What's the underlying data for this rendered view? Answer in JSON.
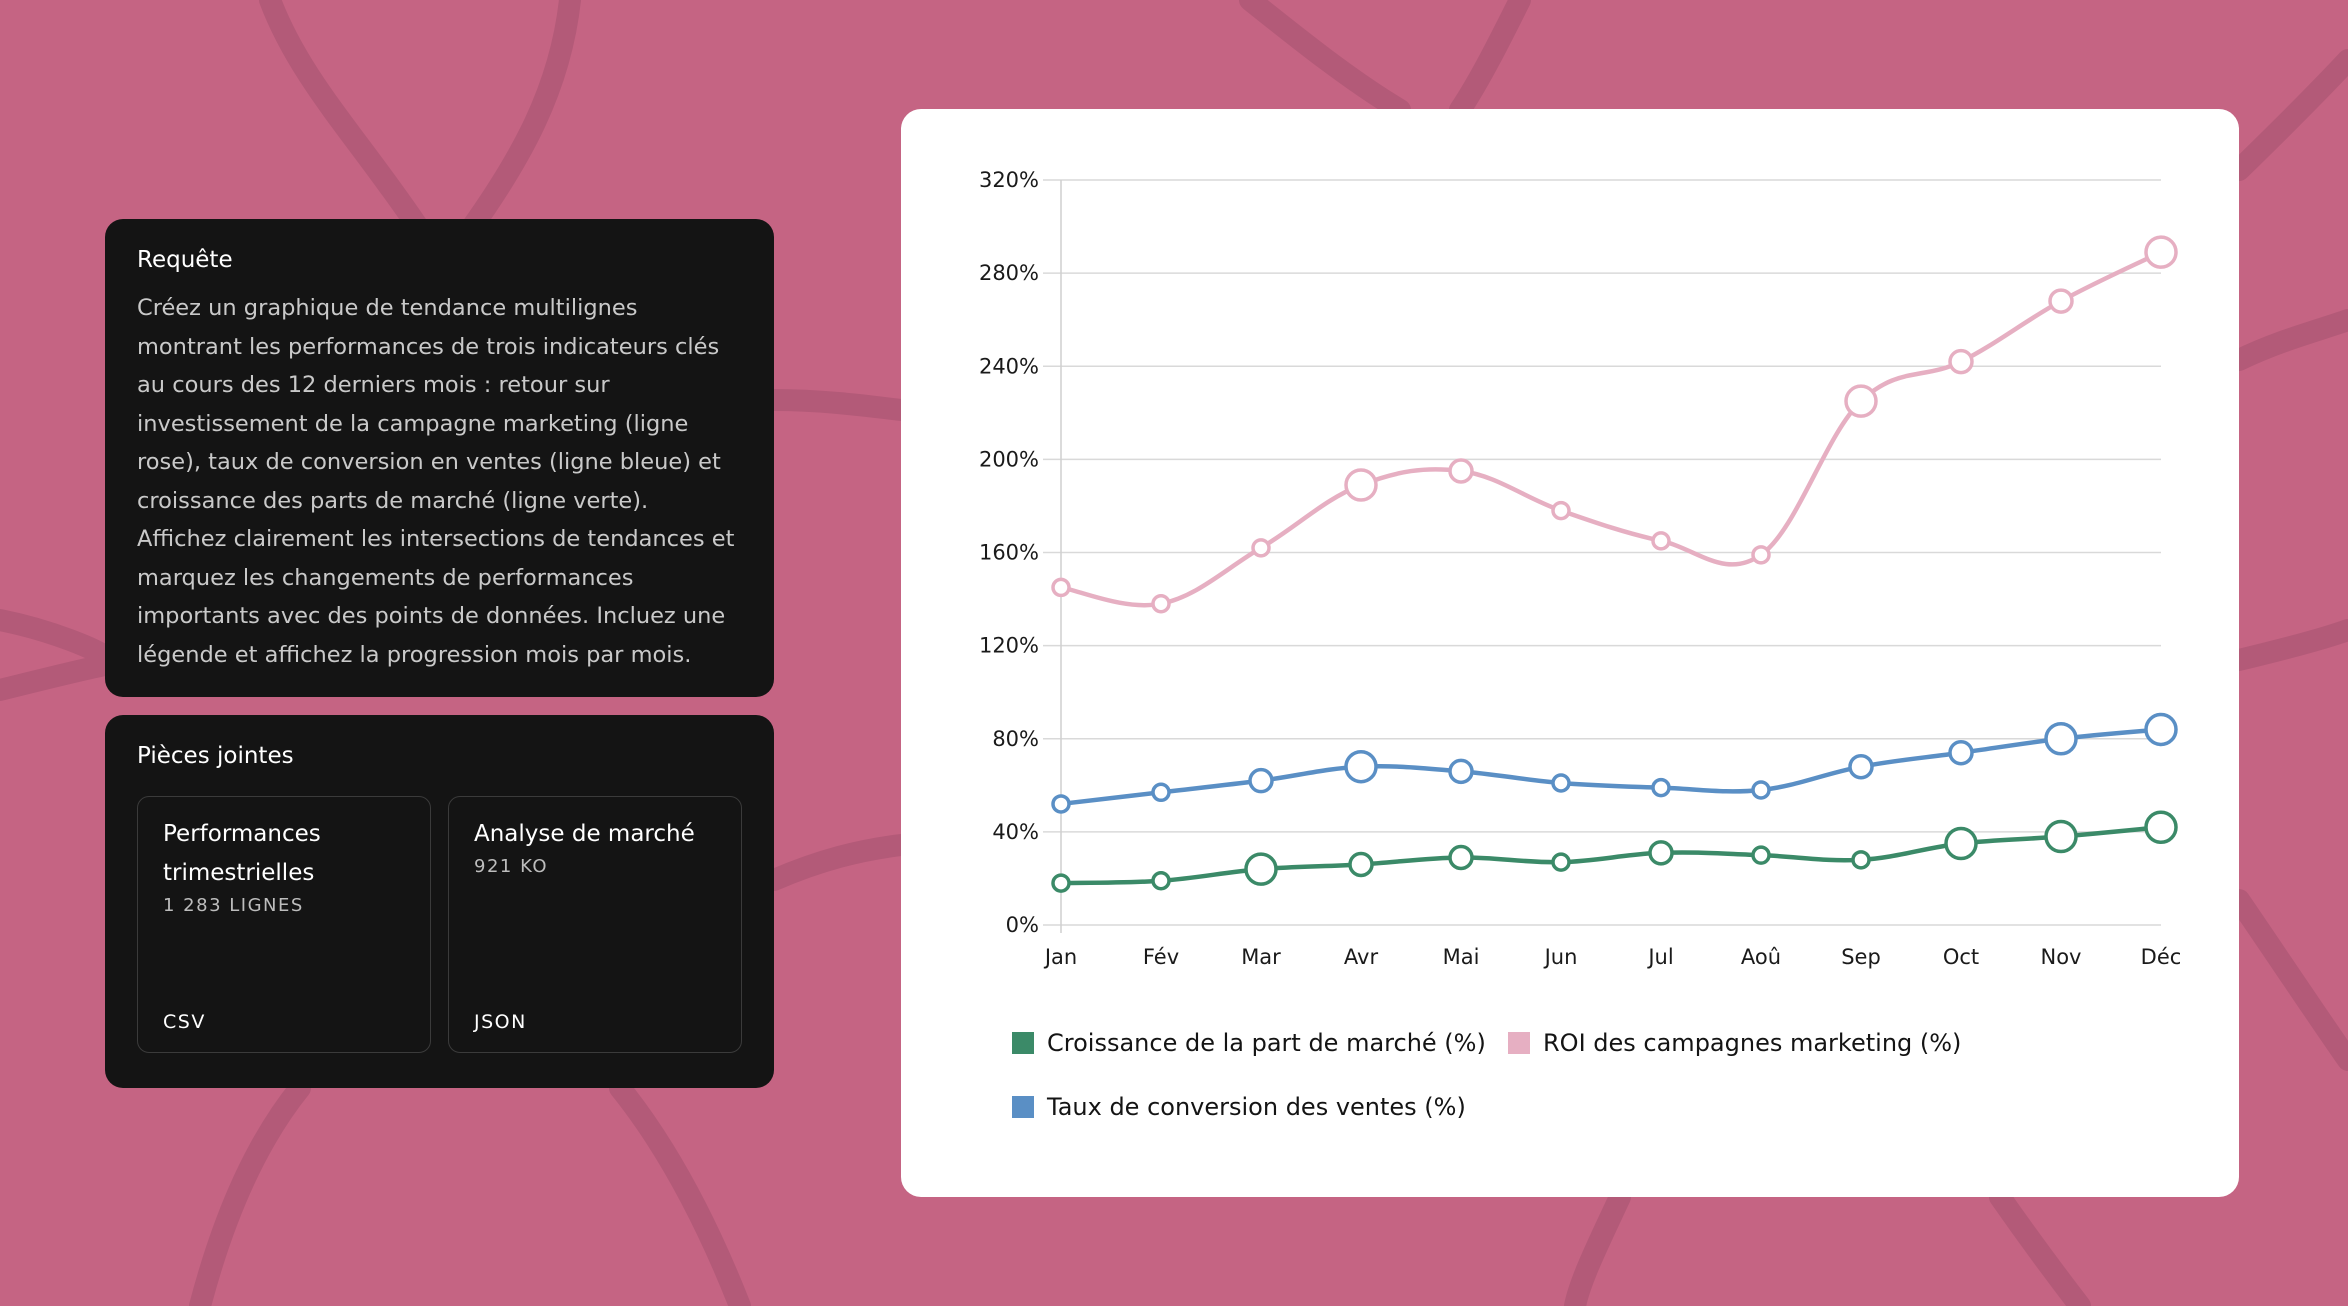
{
  "query": {
    "title": "Requête",
    "text": "Créez un graphique de tendance multilignes montrant les performances de trois indicateurs clés au cours des 12 derniers mois : retour sur investissement de la campagne marketing (ligne rose), taux de conversion en ventes (ligne bleue) et croissance des parts de marché (ligne verte). Affichez clairement les intersections de tendances et marquez les changements de performances importants avec des points de données. Incluez une légende et affichez la progression mois par mois."
  },
  "attachments": {
    "title": "Pièces jointes",
    "items": [
      {
        "name": "Performances trimestrielles",
        "meta": "1 283 LIGNES",
        "type": "CSV"
      },
      {
        "name": "Analyse de marché",
        "meta": "921 KO",
        "type": "JSON"
      }
    ]
  },
  "colors": {
    "background": "#c56483",
    "card": "#141414",
    "pink": "#e6afc2",
    "blue": "#5a8fc5",
    "green": "#3b8a68",
    "grid": "#d9d9d9"
  },
  "chart_data": {
    "type": "line",
    "title": "",
    "xlabel": "",
    "ylabel": "",
    "categories": [
      "Jan",
      "Fév",
      "Mar",
      "Avr",
      "Mai",
      "Jun",
      "Jul",
      "Aoû",
      "Sep",
      "Oct",
      "Nov",
      "Déc"
    ],
    "ylim": [
      0,
      320
    ],
    "yticks": [
      0,
      40,
      80,
      120,
      160,
      200,
      240,
      280,
      320
    ],
    "ytick_labels": [
      "0%",
      "40%",
      "80%",
      "120%",
      "160%",
      "200%",
      "240%",
      "280%",
      "320%"
    ],
    "grid": true,
    "series": [
      {
        "name": "ROI des campagnes marketing (%)",
        "color": "#e6afc2",
        "values": [
          145,
          138,
          162,
          189,
          195,
          178,
          165,
          159,
          225,
          242,
          268,
          289
        ],
        "marker_sizes": [
          "small",
          "small",
          "small",
          "large",
          "medium",
          "small",
          "small",
          "small",
          "large",
          "medium",
          "medium",
          "large"
        ]
      },
      {
        "name": "Taux de conversion des ventes (%)",
        "color": "#5a8fc5",
        "values": [
          52,
          57,
          62,
          68,
          66,
          61,
          59,
          58,
          68,
          74,
          80,
          84
        ],
        "marker_sizes": [
          "small",
          "small",
          "medium",
          "large",
          "medium",
          "small",
          "small",
          "small",
          "medium",
          "medium",
          "large",
          "large"
        ]
      },
      {
        "name": "Croissance de la part de marché (%)",
        "color": "#3b8a68",
        "values": [
          18,
          19,
          24,
          26,
          29,
          27,
          31,
          30,
          28,
          35,
          38,
          42
        ],
        "marker_sizes": [
          "small",
          "small",
          "large",
          "medium",
          "medium",
          "small",
          "medium",
          "small",
          "small",
          "large",
          "large",
          "large"
        ]
      }
    ],
    "legend": [
      {
        "label": "Croissance de la part de marché (%)",
        "color": "#3b8a68"
      },
      {
        "label": "ROI des campagnes marketing (%)",
        "color": "#e6afc2"
      },
      {
        "label": "Taux de conversion des ventes (%)",
        "color": "#5a8fc5"
      }
    ],
    "legend_position": "bottom-left"
  }
}
